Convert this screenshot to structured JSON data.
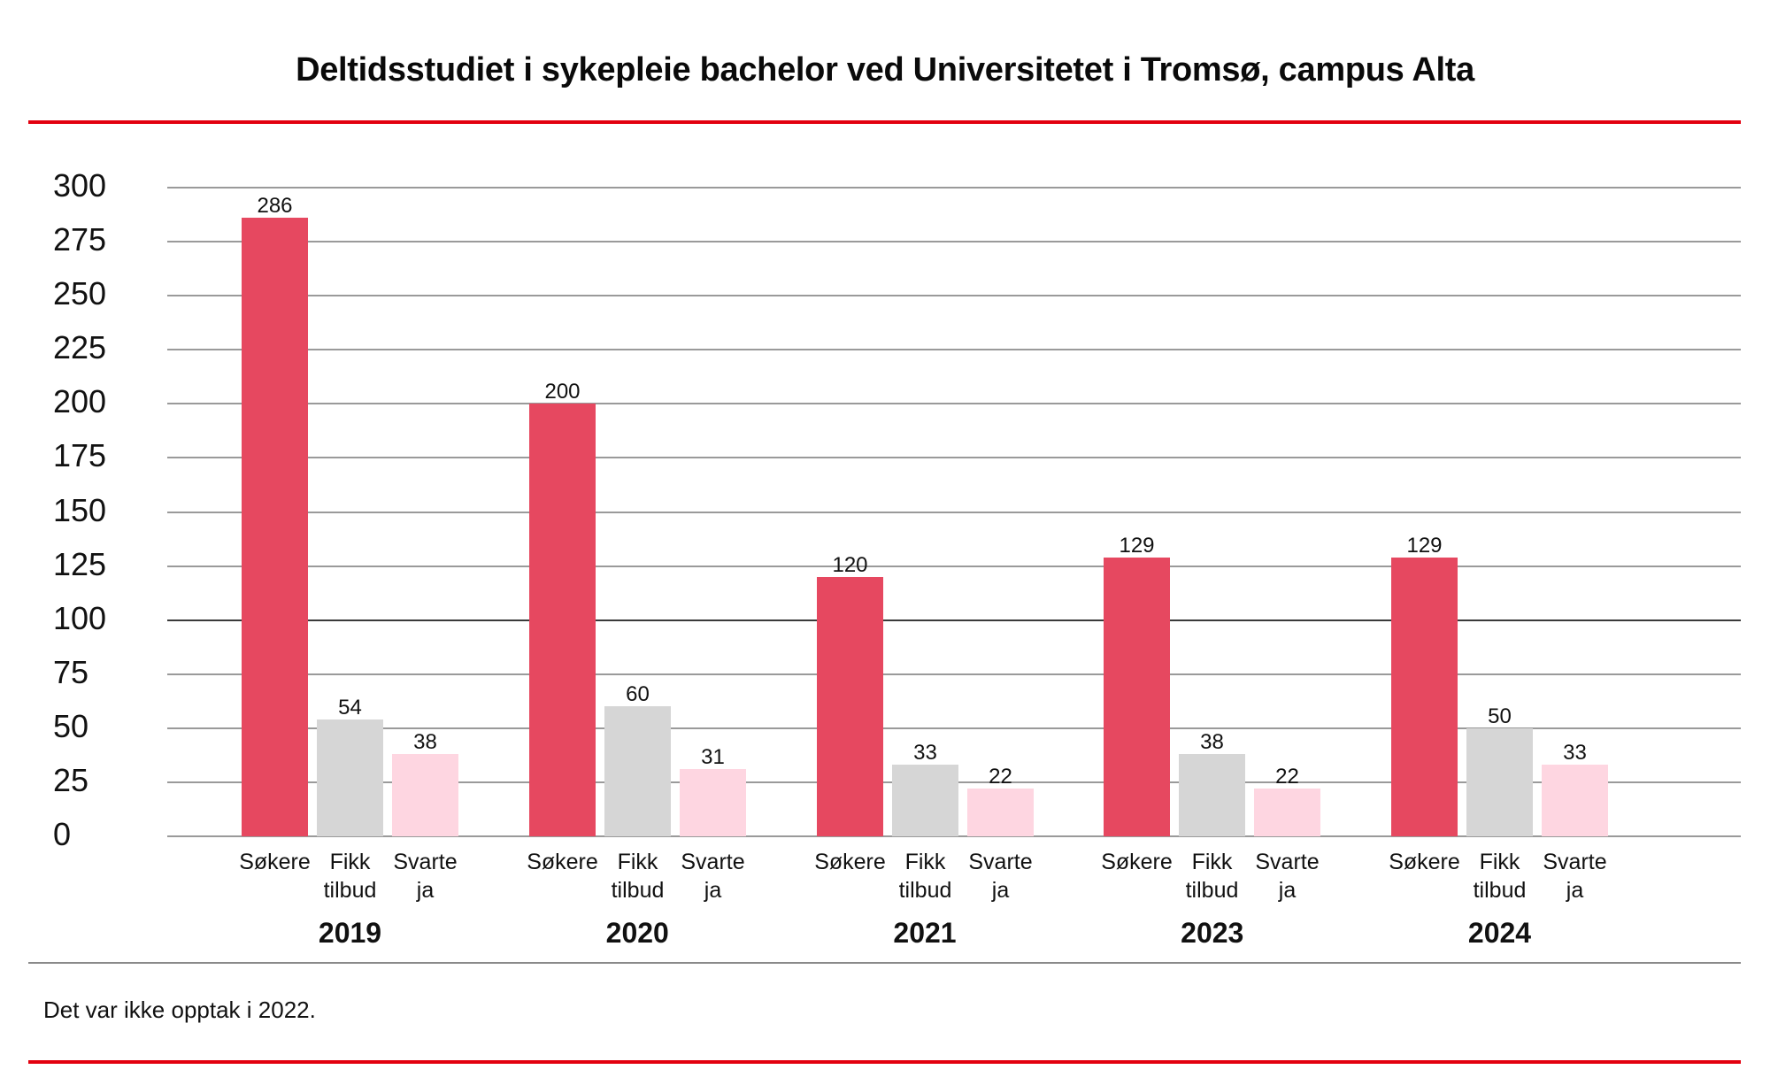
{
  "header": {
    "title": "Deltidsstudiet i sykepleie bachelor ved Universitetet i Tromsø, campus Alta"
  },
  "footnote": "Det var ikke opptak i 2022.",
  "colors": {
    "accent_rule": "#e3000f",
    "sokere": "#e64860",
    "fikk_tilbud": "#d6d6d6",
    "svarte_ja": "#fed6e1"
  },
  "chart_data": {
    "type": "bar",
    "title": "Deltidsstudiet i sykepleie bachelor ved Universitetet i Tromsø, campus Alta",
    "xlabel": "",
    "ylabel": "",
    "ylim": [
      0,
      300
    ],
    "yticks": [
      0,
      25,
      50,
      75,
      100,
      125,
      150,
      175,
      200,
      225,
      250,
      275,
      300
    ],
    "grid": true,
    "legend": "none (category labels under each bar)",
    "categories": [
      "2019",
      "2020",
      "2021",
      "2023",
      "2024"
    ],
    "series": [
      {
        "name": "Søkere",
        "label_lines": [
          "Søkere",
          ""
        ],
        "color": "#e64860",
        "values": [
          286,
          200,
          120,
          129,
          129
        ]
      },
      {
        "name": "Fikk tilbud",
        "label_lines": [
          "Fikk",
          "tilbud"
        ],
        "color": "#d6d6d6",
        "values": [
          54,
          60,
          33,
          38,
          50
        ]
      },
      {
        "name": "Svarte ja",
        "label_lines": [
          "Svarte",
          "ja"
        ],
        "color": "#fed6e1",
        "values": [
          38,
          31,
          22,
          22,
          33
        ]
      }
    ],
    "annotations": [
      "Det var ikke opptak i 2022."
    ]
  }
}
